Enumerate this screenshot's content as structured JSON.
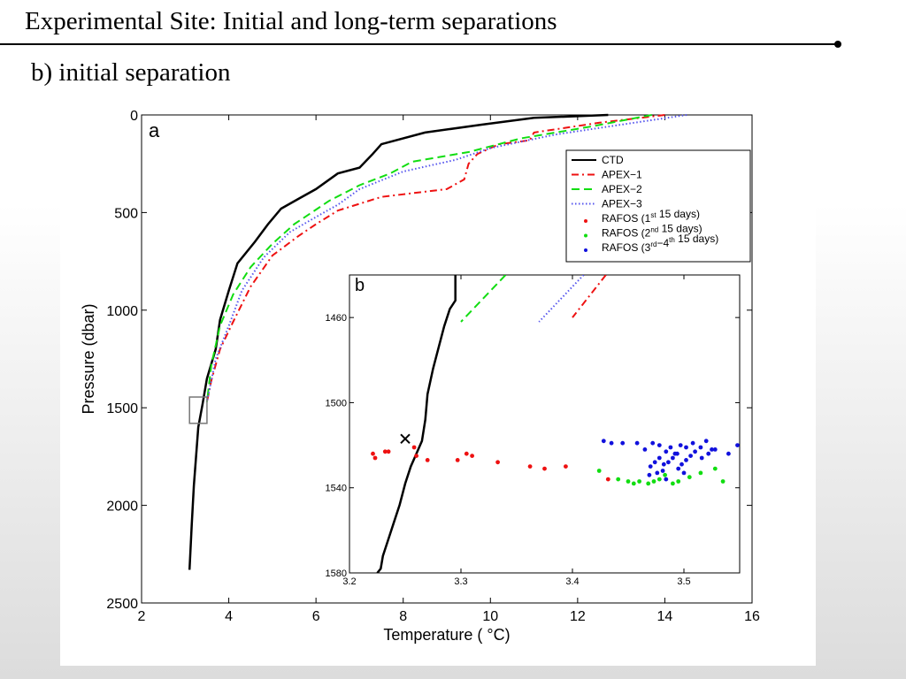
{
  "slide": {
    "title": "Experimental Site: Initial and long-term separations",
    "subtitle": "b) initial separation"
  },
  "colors": {
    "ctd": "#000000",
    "apex1": "#ee1111",
    "apex2": "#11dd11",
    "apex3": "#5555ee",
    "rafos1": "#ee1111",
    "rafos2": "#11dd11",
    "rafos3": "#1111dd"
  },
  "chart_data": [
    {
      "type": "line",
      "panel_label": "a",
      "title": "",
      "xlabel": "Temperature ( °C)",
      "ylabel": "Pressure (dbar)",
      "xlim": [
        2,
        16
      ],
      "ylim": [
        2500,
        0
      ],
      "y_inverted": true,
      "xticks": [
        2,
        4,
        6,
        8,
        10,
        12,
        14,
        16
      ],
      "yticks": [
        0,
        500,
        1000,
        1500,
        2000,
        2500
      ],
      "grid": false,
      "legend_position": "top-right",
      "legend": [
        {
          "label": "CTD",
          "style": "solid",
          "color_key": "ctd"
        },
        {
          "label": "APEX−1",
          "style": "dashdot",
          "color_key": "apex1"
        },
        {
          "label": "APEX−2",
          "style": "dashed",
          "color_key": "apex2"
        },
        {
          "label": "APEX−3",
          "style": "dotted",
          "color_key": "apex3"
        },
        {
          "label": "RAFOS (1",
          "sup": "st",
          "tail": " 15 days)",
          "style": "marker",
          "color_key": "rafos1"
        },
        {
          "label": "RAFOS (2",
          "sup": "nd",
          "tail": " 15 days)",
          "style": "marker",
          "color_key": "rafos2"
        },
        {
          "label": "RAFOS (3",
          "sup": "rd",
          "mid": "−4",
          "sup2": "th",
          "tail": " 15 days)",
          "style": "marker",
          "color_key": "rafos3"
        }
      ],
      "inset_box": {
        "t": [
          3.1,
          3.5
        ],
        "p": [
          1445,
          1580
        ]
      },
      "series": [
        {
          "name": "CTD",
          "color_key": "ctd",
          "style": "solid",
          "points": [
            [
              12.7,
              0
            ],
            [
              11.0,
              15
            ],
            [
              9.8,
              50
            ],
            [
              8.5,
              90
            ],
            [
              7.5,
              150
            ],
            [
              7.3,
              200
            ],
            [
              7.0,
              270
            ],
            [
              6.5,
              300
            ],
            [
              6.0,
              380
            ],
            [
              5.6,
              430
            ],
            [
              5.2,
              480
            ],
            [
              4.9,
              560
            ],
            [
              4.6,
              650
            ],
            [
              4.2,
              760
            ],
            [
              4.0,
              900
            ],
            [
              3.8,
              1050
            ],
            [
              3.7,
              1200
            ],
            [
              3.5,
              1350
            ],
            [
              3.4,
              1480
            ],
            [
              3.3,
              1600
            ],
            [
              3.25,
              1750
            ],
            [
              3.2,
              1900
            ],
            [
              3.15,
              2100
            ],
            [
              3.1,
              2330
            ]
          ]
        },
        {
          "name": "APEX−1",
          "color_key": "apex1",
          "style": "dashdot",
          "points": [
            [
              14.0,
              0
            ],
            [
              12.5,
              40
            ],
            [
              11.0,
              90
            ],
            [
              10.9,
              130
            ],
            [
              10.2,
              150
            ],
            [
              9.7,
              200
            ],
            [
              9.5,
              250
            ],
            [
              9.4,
              330
            ],
            [
              9.0,
              380
            ],
            [
              7.5,
              420
            ],
            [
              6.5,
              490
            ],
            [
              6.0,
              560
            ],
            [
              5.6,
              620
            ],
            [
              5.0,
              720
            ],
            [
              4.5,
              880
            ],
            [
              4.1,
              1060
            ],
            [
              3.8,
              1200
            ],
            [
              3.6,
              1360
            ],
            [
              3.5,
              1470
            ]
          ]
        },
        {
          "name": "APEX−2",
          "color_key": "apex2",
          "style": "dashed",
          "points": [
            [
              13.7,
              0
            ],
            [
              12.3,
              60
            ],
            [
              10.7,
              120
            ],
            [
              9.5,
              190
            ],
            [
              8.2,
              240
            ],
            [
              7.7,
              300
            ],
            [
              7.0,
              360
            ],
            [
              6.3,
              440
            ],
            [
              6.1,
              470
            ],
            [
              5.5,
              560
            ],
            [
              5.0,
              660
            ],
            [
              4.5,
              780
            ],
            [
              4.1,
              920
            ],
            [
              3.8,
              1080
            ],
            [
              3.6,
              1280
            ],
            [
              3.5,
              1470
            ]
          ]
        },
        {
          "name": "APEX−3",
          "color_key": "apex3",
          "style": "dotted",
          "points": [
            [
              14.5,
              0
            ],
            [
              13.0,
              50
            ],
            [
              11.5,
              100
            ],
            [
              10.0,
              170
            ],
            [
              9.2,
              230
            ],
            [
              8.0,
              290
            ],
            [
              7.0,
              380
            ],
            [
              6.5,
              460
            ],
            [
              6.1,
              510
            ],
            [
              5.4,
              600
            ],
            [
              4.8,
              730
            ],
            [
              4.3,
              900
            ],
            [
              4.0,
              1080
            ],
            [
              3.7,
              1250
            ],
            [
              3.5,
              1470
            ]
          ]
        }
      ]
    },
    {
      "type": "scatter",
      "panel_label": "b",
      "title": "",
      "xlabel": "",
      "ylabel": "",
      "xlim": [
        3.2,
        3.55
      ],
      "ylim": [
        1580,
        1440
      ],
      "y_inverted": true,
      "xticks": [
        3.2,
        3.3,
        3.4,
        3.5
      ],
      "yticks": [
        1460,
        1500,
        1540,
        1580
      ],
      "grid": false,
      "marker_x": [
        3.25,
        1517
      ],
      "series": [
        {
          "name": "CTD",
          "color_key": "ctd",
          "style": "solid",
          "points": [
            [
              3.295,
              1440
            ],
            [
              3.295,
              1452
            ],
            [
              3.29,
              1456
            ],
            [
              3.285,
              1464
            ],
            [
              3.28,
              1474
            ],
            [
              3.275,
              1484
            ],
            [
              3.27,
              1496
            ],
            [
              3.268,
              1508
            ],
            [
              3.265,
              1518
            ],
            [
              3.26,
              1524
            ],
            [
              3.255,
              1530
            ],
            [
              3.25,
              1538
            ],
            [
              3.245,
              1548
            ],
            [
              3.24,
              1556
            ],
            [
              3.235,
              1564
            ],
            [
              3.23,
              1572
            ],
            [
              3.228,
              1578
            ],
            [
              3.225,
              1580
            ]
          ]
        },
        {
          "name": "APEX−1",
          "color_key": "apex1",
          "style": "dashdot",
          "points": [
            [
              3.43,
              1440
            ],
            [
              3.4,
              1460
            ],
            [
              3.4,
              1460
            ],
            [
              3.4,
              1460
            ]
          ]
        },
        {
          "name": "APEX−2",
          "color_key": "apex2",
          "style": "dashed",
          "points": [
            [
              3.34,
              1440
            ],
            [
              3.3,
              1462
            ],
            [
              3.3,
              1462
            ],
            [
              3.3,
              1462
            ]
          ]
        },
        {
          "name": "APEX−3",
          "color_key": "apex3",
          "style": "dotted",
          "points": [
            [
              3.41,
              1440
            ],
            [
              3.37,
              1462
            ],
            [
              3.37,
              1462
            ],
            [
              3.37,
              1462
            ]
          ]
        },
        {
          "name": "RAFOS (1st 15 days)",
          "color_key": "rafos1",
          "style": "marker",
          "points": [
            [
              3.221,
              1524
            ],
            [
              3.223,
              1526
            ],
            [
              3.232,
              1523
            ],
            [
              3.235,
              1523
            ],
            [
              3.258,
              1521
            ],
            [
              3.26,
              1525
            ],
            [
              3.27,
              1527
            ],
            [
              3.297,
              1527
            ],
            [
              3.305,
              1524
            ],
            [
              3.31,
              1525
            ],
            [
              3.333,
              1528
            ],
            [
              3.362,
              1530
            ],
            [
              3.375,
              1531
            ],
            [
              3.394,
              1530
            ],
            [
              3.432,
              1536
            ]
          ]
        },
        {
          "name": "RAFOS (2nd 15 days)",
          "color_key": "rafos2",
          "style": "marker",
          "points": [
            [
              3.424,
              1532
            ],
            [
              3.441,
              1536
            ],
            [
              3.45,
              1537
            ],
            [
              3.455,
              1538
            ],
            [
              3.46,
              1537
            ],
            [
              3.468,
              1538
            ],
            [
              3.473,
              1537
            ],
            [
              3.478,
              1536
            ],
            [
              3.483,
              1534
            ],
            [
              3.49,
              1538
            ],
            [
              3.495,
              1537
            ],
            [
              3.505,
              1535
            ],
            [
              3.515,
              1533
            ],
            [
              3.528,
              1531
            ],
            [
              3.535,
              1537
            ]
          ]
        },
        {
          "name": "RAFOS (3rd−4th 15 days)",
          "color_key": "rafos3",
          "style": "marker",
          "points": [
            [
              3.428,
              1518
            ],
            [
              3.435,
              1519
            ],
            [
              3.445,
              1519
            ],
            [
              3.458,
              1519
            ],
            [
              3.465,
              1522
            ],
            [
              3.472,
              1519
            ],
            [
              3.478,
              1520
            ],
            [
              3.484,
              1523
            ],
            [
              3.488,
              1521
            ],
            [
              3.492,
              1524
            ],
            [
              3.497,
              1520
            ],
            [
              3.502,
              1521
            ],
            [
              3.508,
              1519
            ],
            [
              3.515,
              1521
            ],
            [
              3.52,
              1518
            ],
            [
              3.525,
              1522
            ],
            [
              3.47,
              1530
            ],
            [
              3.474,
              1528
            ],
            [
              3.478,
              1526
            ],
            [
              3.482,
              1529
            ],
            [
              3.486,
              1528
            ],
            [
              3.49,
              1526
            ],
            [
              3.494,
              1524
            ],
            [
              3.498,
              1529
            ],
            [
              3.502,
              1527
            ],
            [
              3.506,
              1525
            ],
            [
              3.51,
              1523
            ],
            [
              3.516,
              1526
            ],
            [
              3.522,
              1524
            ],
            [
              3.528,
              1522
            ],
            [
              3.476,
              1533
            ],
            [
              3.481,
              1532
            ],
            [
              3.495,
              1531
            ],
            [
              3.54,
              1524
            ],
            [
              3.548,
              1520
            ],
            [
              3.5,
              1533
            ],
            [
              3.469,
              1534
            ],
            [
              3.484,
              1536
            ]
          ]
        }
      ]
    }
  ]
}
